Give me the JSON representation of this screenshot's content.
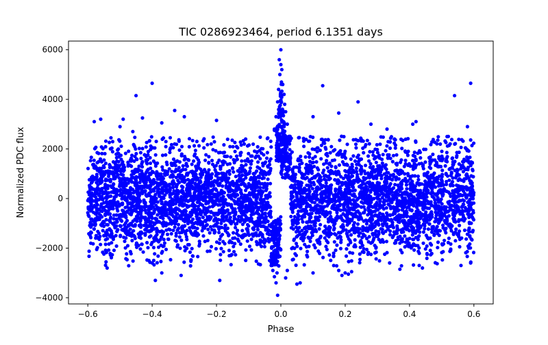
{
  "chart_data": {
    "type": "scatter",
    "title": "TIC 0286923464, period 6.1351 days",
    "xlabel": "Phase",
    "ylabel": "Normalized PDC flux",
    "xlim": [
      -0.66,
      0.66
    ],
    "ylim": [
      -4250,
      6350
    ],
    "x_ticks": [
      -0.6,
      -0.4,
      -0.2,
      0.0,
      0.2,
      0.4,
      0.6
    ],
    "x_tick_labels": [
      "−0.6",
      "−0.4",
      "−0.2",
      "0.0",
      "0.2",
      "0.4",
      "0.6"
    ],
    "y_ticks": [
      -4000,
      -2000,
      0,
      2000,
      4000,
      6000
    ],
    "y_tick_labels": [
      "−4000",
      "−2000",
      "0",
      "2000",
      "4000",
      "6000"
    ],
    "grid": false,
    "legend": "none",
    "marker_color": "#0000ff",
    "series": [
      {
        "band": {
          "phase_range": [
            -0.6,
            0.6
          ],
          "flux_center": 0,
          "flux_typical_range": [
            -2200,
            2200
          ]
        },
        "points": [
          [
            0.0,
            6000
          ],
          [
            -0.005,
            5600
          ],
          [
            0.0,
            5400
          ],
          [
            0.003,
            5200
          ],
          [
            -0.003,
            5000
          ],
          [
            0.002,
            4700
          ],
          [
            0.006,
            4600
          ],
          [
            -0.007,
            4400
          ],
          [
            0.01,
            4200
          ],
          [
            0.0,
            4300
          ],
          [
            -0.01,
            3900
          ],
          [
            0.012,
            3800
          ],
          [
            0.015,
            3500
          ],
          [
            -0.015,
            3300
          ],
          [
            0.02,
            3000
          ],
          [
            -0.02,
            2800
          ],
          [
            0.005,
            3600
          ],
          [
            -0.004,
            3700
          ],
          [
            -0.4,
            4650
          ],
          [
            -0.45,
            4150
          ],
          [
            0.13,
            4550
          ],
          [
            0.24,
            3900
          ],
          [
            0.59,
            4650
          ],
          [
            0.54,
            4150
          ],
          [
            -0.33,
            3550
          ],
          [
            -0.43,
            3250
          ],
          [
            -0.3,
            3300
          ],
          [
            -0.58,
            3100
          ],
          [
            -0.56,
            3200
          ],
          [
            0.18,
            3450
          ],
          [
            0.28,
            3000
          ],
          [
            0.42,
            3100
          ],
          [
            0.41,
            3000
          ],
          [
            -0.2,
            3150
          ],
          [
            0.58,
            2900
          ],
          [
            -0.02,
            2750
          ],
          [
            0.1,
            3300
          ],
          [
            -0.5,
            2900
          ],
          [
            -0.49,
            3200
          ],
          [
            -0.46,
            2700
          ],
          [
            0.33,
            2800
          ],
          [
            -0.37,
            3050
          ],
          [
            -0.01,
            -3900
          ],
          [
            -0.015,
            -3400
          ],
          [
            -0.02,
            -3150
          ],
          [
            -0.025,
            -2900
          ],
          [
            -0.03,
            -2700
          ],
          [
            -0.035,
            -2500
          ],
          [
            -0.012,
            -3000
          ],
          [
            0.05,
            -3450
          ],
          [
            0.06,
            -3400
          ],
          [
            0.015,
            -3200
          ],
          [
            0.02,
            -2900
          ],
          [
            0.1,
            -3000
          ],
          [
            -0.39,
            -3300
          ],
          [
            -0.19,
            -3300
          ],
          [
            -0.37,
            -3000
          ],
          [
            -0.31,
            -3100
          ],
          [
            0.19,
            -3100
          ],
          [
            0.2,
            -3000
          ],
          [
            0.21,
            -3050
          ],
          [
            0.22,
            -2950
          ],
          [
            0.18,
            -2900
          ],
          [
            0.37,
            -2850
          ],
          [
            0.56,
            -2700
          ],
          [
            0.59,
            -2600
          ],
          [
            -0.54,
            -2800
          ],
          [
            -0.4,
            -2600
          ],
          [
            -0.41,
            -2500
          ],
          [
            0.43,
            -2700
          ],
          [
            0.44,
            -2800
          ]
        ]
      }
    ]
  }
}
